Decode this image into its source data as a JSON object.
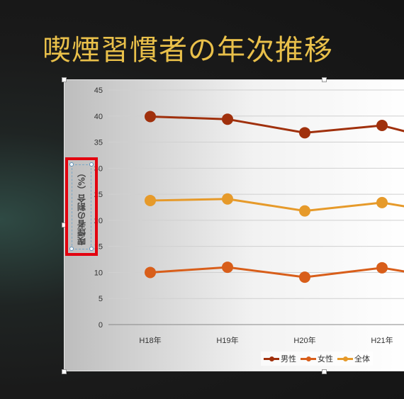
{
  "slide": {
    "title": "喫煙習慣者の年次推移"
  },
  "chart_data": {
    "type": "line",
    "categories": [
      "H18年",
      "H19年",
      "H20年",
      "H21年"
    ],
    "ylabel": "喫煙者の割合（%）",
    "ylim": [
      0,
      45
    ],
    "yticks": [
      0,
      5,
      10,
      15,
      20,
      25,
      30,
      35,
      40,
      45
    ],
    "grid": true,
    "legend_position": "bottom-right",
    "series": [
      {
        "name": "男性",
        "color": "#a0300c",
        "values": [
          39.9,
          39.4,
          36.8,
          38.2
        ]
      },
      {
        "name": "女性",
        "color": "#d85e1a",
        "values": [
          10.0,
          11.0,
          9.1,
          10.9
        ]
      },
      {
        "name": "全体",
        "color": "#e69a2a",
        "values": [
          23.8,
          24.1,
          21.8,
          23.4
        ]
      }
    ]
  }
}
